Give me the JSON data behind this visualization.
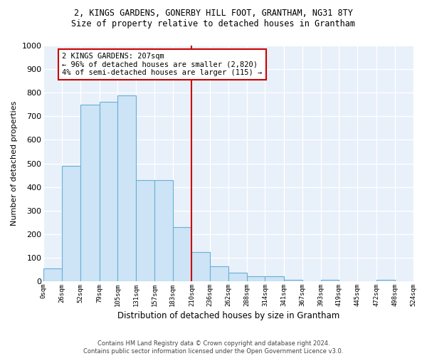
{
  "title1": "2, KINGS GARDENS, GONERBY HILL FOOT, GRANTHAM, NG31 8TY",
  "title2": "Size of property relative to detached houses in Grantham",
  "xlabel": "Distribution of detached houses by size in Grantham",
  "ylabel": "Number of detached properties",
  "footer1": "Contains HM Land Registry data © Crown copyright and database right 2024.",
  "footer2": "Contains public sector information licensed under the Open Government Licence v3.0.",
  "annotation_line1": "2 KINGS GARDENS: 207sqm",
  "annotation_line2": "← 96% of detached houses are smaller (2,820)",
  "annotation_line3": "4% of semi-detached houses are larger (115) →",
  "bins": [
    0,
    26,
    52,
    79,
    105,
    131,
    157,
    183,
    210,
    236,
    262,
    288,
    314,
    341,
    367,
    393,
    419,
    445,
    472,
    498,
    524
  ],
  "bin_labels": [
    "0sqm",
    "26sqm",
    "52sqm",
    "79sqm",
    "105sqm",
    "131sqm",
    "157sqm",
    "183sqm",
    "210sqm",
    "236sqm",
    "262sqm",
    "288sqm",
    "314sqm",
    "341sqm",
    "367sqm",
    "393sqm",
    "419sqm",
    "445sqm",
    "472sqm",
    "498sqm",
    "524sqm"
  ],
  "counts": [
    55,
    490,
    750,
    760,
    790,
    430,
    430,
    230,
    125,
    65,
    35,
    20,
    20,
    5,
    0,
    5,
    0,
    0,
    5,
    0,
    5
  ],
  "bar_color": "#cce4f5",
  "bar_edge_color": "#6baed6",
  "vline_color": "#cc0000",
  "vline_x": 210,
  "annotation_box_color": "#cc0000",
  "background_color": "#e8f0fa",
  "grid_color": "#ffffff",
  "ylim": [
    0,
    1000
  ],
  "yticks": [
    0,
    100,
    200,
    300,
    400,
    500,
    600,
    700,
    800,
    900,
    1000
  ]
}
